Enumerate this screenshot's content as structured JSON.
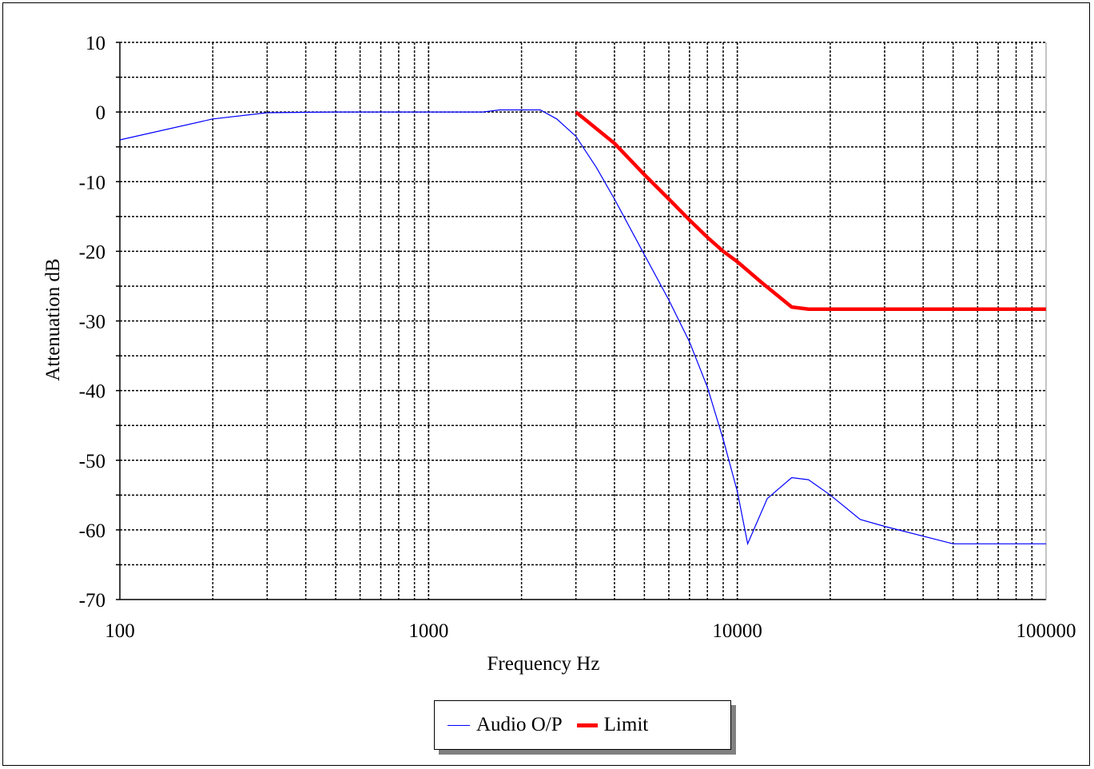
{
  "chart_data": {
    "type": "line",
    "title": "",
    "xlabel": "Frequency Hz",
    "ylabel": "Attenuation dB",
    "xscale": "log",
    "xlim": [
      100,
      100000
    ],
    "ylim": [
      -70,
      10
    ],
    "xticks": [
      "100",
      "1000",
      "10000",
      "100000"
    ],
    "yticks": [
      "10",
      "0",
      "-10",
      "-20",
      "-30",
      "-40",
      "-50",
      "-60",
      "-70"
    ],
    "grid": true,
    "legend_position": "bottom-center",
    "series": [
      {
        "name": "Audio O/P",
        "color": "#0000ff",
        "points": [
          [
            100,
            -4
          ],
          [
            200,
            -1
          ],
          [
            300,
            -0.1
          ],
          [
            500,
            0
          ],
          [
            1000,
            0
          ],
          [
            1500,
            0
          ],
          [
            1700,
            0.3
          ],
          [
            2000,
            0.3
          ],
          [
            2300,
            0.3
          ],
          [
            2600,
            -1
          ],
          [
            3000,
            -3.5
          ],
          [
            3500,
            -8
          ],
          [
            4000,
            -12.5
          ],
          [
            5000,
            -20.5
          ],
          [
            6000,
            -27
          ],
          [
            7000,
            -33
          ],
          [
            8000,
            -39.5
          ],
          [
            9000,
            -47
          ],
          [
            10000,
            -54.5
          ],
          [
            10800,
            -62
          ],
          [
            12500,
            -55.5
          ],
          [
            15000,
            -52.5
          ],
          [
            17000,
            -52.8
          ],
          [
            20000,
            -55
          ],
          [
            25000,
            -58.5
          ],
          [
            30000,
            -59.5
          ],
          [
            50000,
            -62
          ],
          [
            100000,
            -62
          ]
        ]
      },
      {
        "name": "Limit",
        "color": "#ff0000",
        "points": [
          [
            3000,
            0
          ],
          [
            4000,
            -4.5
          ],
          [
            5000,
            -9
          ],
          [
            6000,
            -12.5
          ],
          [
            7000,
            -15.5
          ],
          [
            8000,
            -18
          ],
          [
            9000,
            -20
          ],
          [
            10000,
            -21.5
          ],
          [
            12000,
            -24.5
          ],
          [
            15000,
            -28
          ],
          [
            17000,
            -28.3
          ],
          [
            100000,
            -28.3
          ]
        ]
      }
    ]
  },
  "legend": {
    "items": [
      {
        "label": "Audio O/P",
        "color": "#0000ff"
      },
      {
        "label": "Limit",
        "color": "#ff0000"
      }
    ]
  }
}
